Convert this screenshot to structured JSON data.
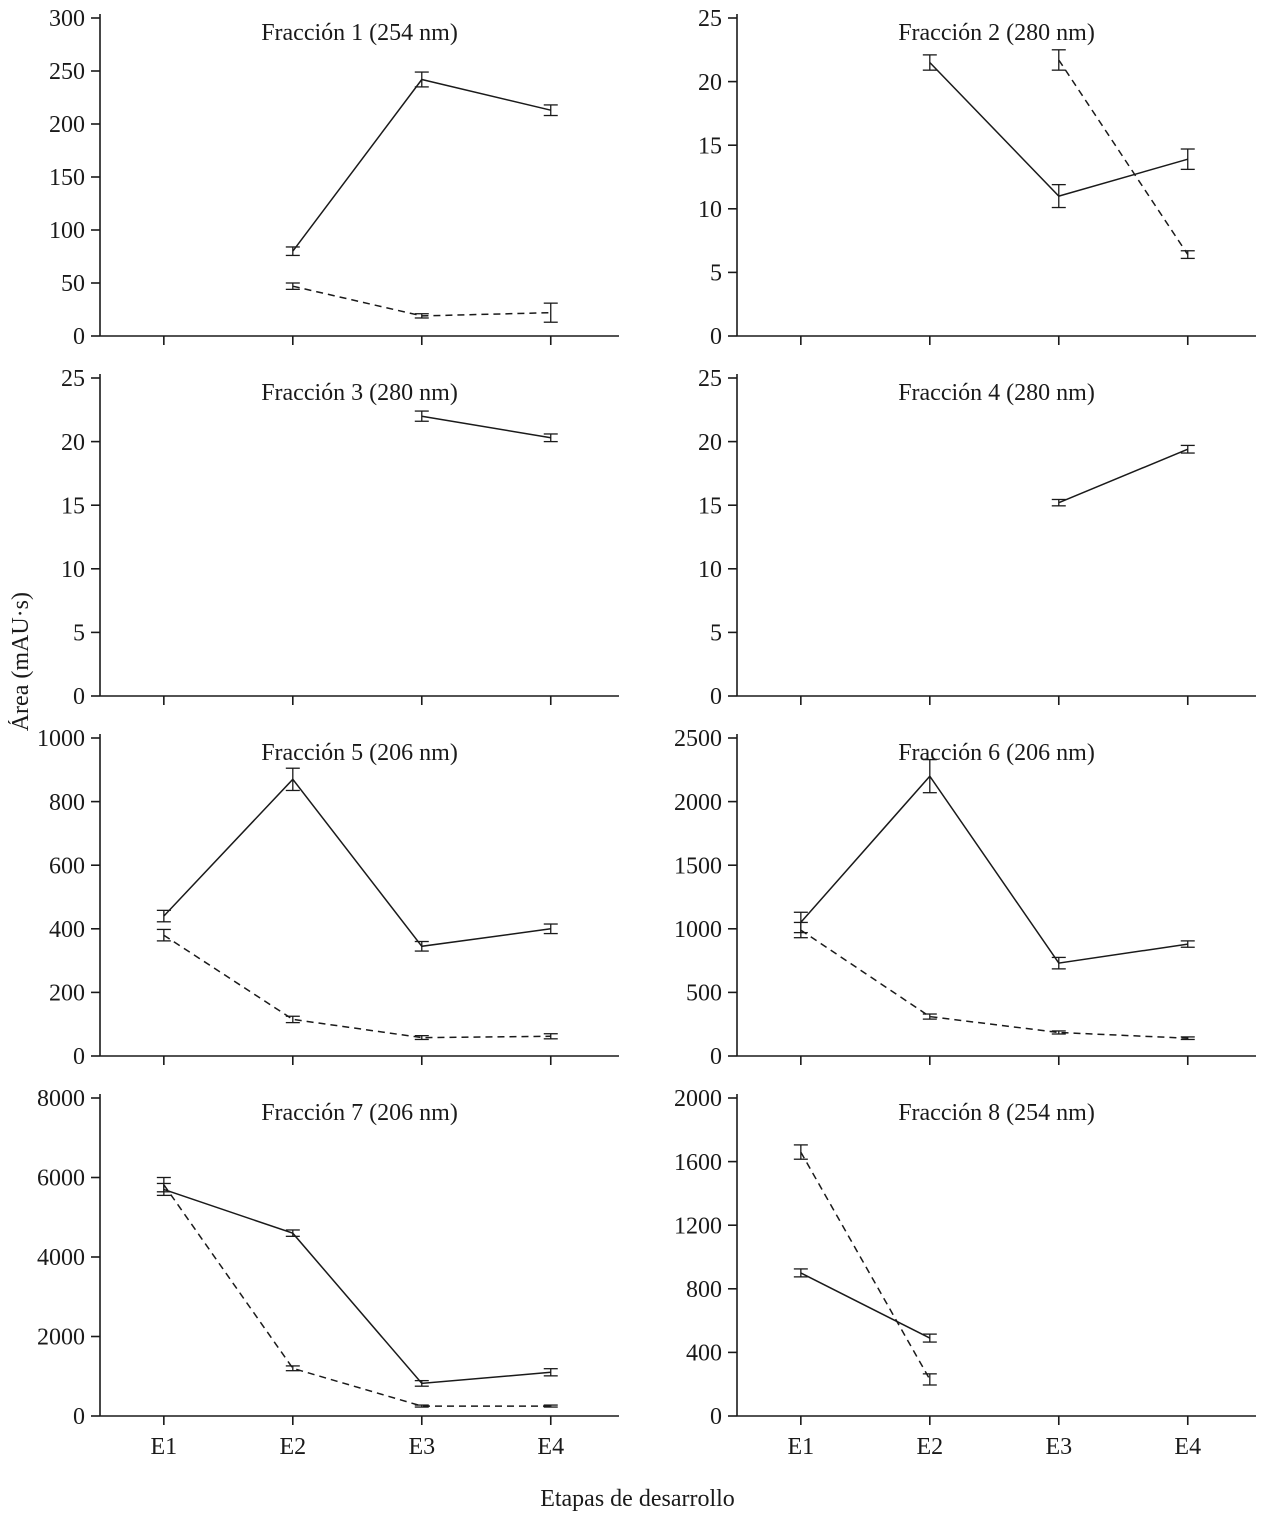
{
  "figure": {
    "ylabel": "Área (mAU·s)",
    "xlabel": "Etapas de desarrollo",
    "line_color": "#1a1a1a",
    "background": "#ffffff"
  },
  "chart_data": [
    {
      "type": "line",
      "title": "Fracción 1 (254 nm)",
      "x": [
        "E1",
        "E2",
        "E3",
        "E4"
      ],
      "ylim": [
        0,
        300
      ],
      "yticks": [
        0,
        50,
        100,
        150,
        200,
        250,
        300
      ],
      "xlabel": "",
      "ylabel": "",
      "grid": false,
      "legend": "none",
      "series": [
        {
          "name": "solid-line-series",
          "style": "solid",
          "values": [
            null,
            80,
            242,
            213
          ],
          "errors": [
            null,
            4,
            7,
            5
          ]
        },
        {
          "name": "dashed-line-series",
          "style": "dashed",
          "values": [
            null,
            47,
            19,
            22
          ],
          "errors": [
            null,
            3,
            2,
            9
          ]
        }
      ]
    },
    {
      "type": "line",
      "title": "Fracción 2 (280 nm)",
      "x": [
        "E1",
        "E2",
        "E3",
        "E4"
      ],
      "ylim": [
        0,
        25
      ],
      "yticks": [
        0,
        5,
        10,
        15,
        20,
        25
      ],
      "xlabel": "",
      "ylabel": "",
      "grid": false,
      "legend": "none",
      "series": [
        {
          "name": "solid-line-series",
          "style": "solid",
          "values": [
            null,
            21.5,
            11,
            13.9
          ],
          "errors": [
            null,
            0.6,
            0.9,
            0.8
          ]
        },
        {
          "name": "dashed-line-series",
          "style": "dashed",
          "values": [
            null,
            null,
            21.7,
            6.4
          ],
          "errors": [
            null,
            null,
            0.8,
            0.3
          ]
        }
      ]
    },
    {
      "type": "line",
      "title": "Fracción 3 (280 nm)",
      "x": [
        "E1",
        "E2",
        "E3",
        "E4"
      ],
      "ylim": [
        0,
        25
      ],
      "yticks": [
        0,
        5,
        10,
        15,
        20,
        25
      ],
      "xlabel": "",
      "ylabel": "",
      "grid": false,
      "legend": "none",
      "series": [
        {
          "name": "solid-line-series",
          "style": "solid",
          "values": [
            null,
            null,
            22,
            20.3
          ],
          "errors": [
            null,
            null,
            0.4,
            0.3
          ]
        }
      ]
    },
    {
      "type": "line",
      "title": "Fracción 4 (280 nm)",
      "x": [
        "E1",
        "E2",
        "E3",
        "E4"
      ],
      "ylim": [
        0,
        25
      ],
      "yticks": [
        0,
        5,
        10,
        15,
        20,
        25
      ],
      "xlabel": "",
      "ylabel": "",
      "grid": false,
      "legend": "none",
      "series": [
        {
          "name": "solid-line-series",
          "style": "solid",
          "values": [
            null,
            null,
            15.2,
            19.4
          ],
          "errors": [
            null,
            null,
            0.25,
            0.3
          ]
        }
      ]
    },
    {
      "type": "line",
      "title": "Fracción 5 (206 nm)",
      "x": [
        "E1",
        "E2",
        "E3",
        "E4"
      ],
      "ylim": [
        0,
        1000
      ],
      "yticks": [
        0,
        200,
        400,
        600,
        800,
        1000
      ],
      "xlabel": "",
      "ylabel": "",
      "grid": false,
      "legend": "none",
      "series": [
        {
          "name": "solid-line-series",
          "style": "solid",
          "values": [
            440,
            870,
            345,
            400
          ],
          "errors": [
            18,
            35,
            15,
            15
          ]
        },
        {
          "name": "dashed-line-series",
          "style": "dashed",
          "values": [
            380,
            115,
            58,
            62
          ],
          "errors": [
            18,
            10,
            6,
            8
          ]
        }
      ]
    },
    {
      "type": "line",
      "title": "Fracción 6 (206 nm)",
      "x": [
        "E1",
        "E2",
        "E3",
        "E4"
      ],
      "ylim": [
        0,
        2500
      ],
      "yticks": [
        0,
        500,
        1000,
        1500,
        2000,
        2500
      ],
      "xlabel": "",
      "ylabel": "",
      "grid": false,
      "legend": "none",
      "series": [
        {
          "name": "solid-line-series",
          "style": "solid",
          "values": [
            1050,
            2200,
            730,
            880
          ],
          "errors": [
            80,
            130,
            45,
            25
          ]
        },
        {
          "name": "dashed-line-series",
          "style": "dashed",
          "values": [
            990,
            310,
            185,
            140
          ],
          "errors": [
            60,
            20,
            12,
            10
          ]
        }
      ]
    },
    {
      "type": "line",
      "title": "Fracción 7 (206 nm)",
      "x": [
        "E1",
        "E2",
        "E3",
        "E4"
      ],
      "ylim": [
        0,
        8000
      ],
      "yticks": [
        0,
        2000,
        4000,
        6000,
        8000
      ],
      "xlabel": "",
      "ylabel": "",
      "grid": false,
      "legend": "none",
      "series": [
        {
          "name": "solid-line-series",
          "style": "solid",
          "values": [
            5700,
            4600,
            820,
            1100
          ],
          "errors": [
            150,
            80,
            70,
            90
          ]
        },
        {
          "name": "dashed-line-series",
          "style": "dashed",
          "values": [
            5820,
            1200,
            250,
            250
          ],
          "errors": [
            180,
            60,
            25,
            25
          ]
        }
      ]
    },
    {
      "type": "line",
      "title": "Fracción 8 (254 nm)",
      "x": [
        "E1",
        "E2",
        "E3",
        "E4"
      ],
      "ylim": [
        0,
        2000
      ],
      "yticks": [
        0,
        400,
        800,
        1200,
        1600,
        2000
      ],
      "xlabel": "",
      "ylabel": "",
      "grid": false,
      "legend": "none",
      "series": [
        {
          "name": "solid-line-series",
          "style": "solid",
          "values": [
            900,
            490,
            null,
            null
          ],
          "errors": [
            25,
            25,
            null,
            null
          ]
        },
        {
          "name": "dashed-line-series",
          "style": "dashed",
          "values": [
            1660,
            230,
            null,
            null
          ],
          "errors": [
            45,
            35,
            null,
            null
          ]
        }
      ]
    }
  ]
}
